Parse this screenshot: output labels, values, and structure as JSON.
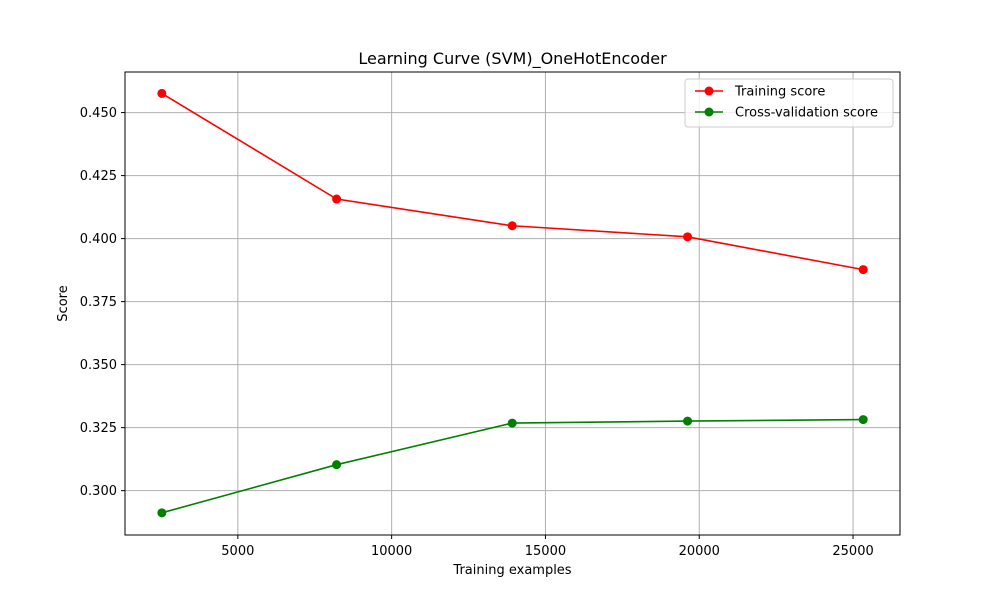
{
  "chart_data": {
    "type": "line",
    "title": "Learning Curve (SVM)_OneHotEncoder",
    "xlabel": "Training examples",
    "ylabel": "Score",
    "xlim": [
      1332,
      26526
    ],
    "ylim": [
      0.2824,
      0.4661
    ],
    "xticks": [
      5000,
      10000,
      15000,
      20000,
      25000
    ],
    "xtick_labels": [
      "5000",
      "10000",
      "15000",
      "20000",
      "25000"
    ],
    "yticks": [
      0.3,
      0.325,
      0.35,
      0.375,
      0.4,
      0.425,
      0.45
    ],
    "ytick_labels": [
      "0.300",
      "0.325",
      "0.350",
      "0.375",
      "0.400",
      "0.425",
      "0.450"
    ],
    "grid": true,
    "legend_position": "top-right",
    "x": [
      2530,
      8210,
      13920,
      19620,
      25330
    ],
    "series": [
      {
        "name": "Training score",
        "color": "#ff0000",
        "marker": "circle",
        "values": [
          0.4576,
          0.4157,
          0.4051,
          0.4007,
          0.3877
        ]
      },
      {
        "name": "Cross-validation score",
        "color": "#008000",
        "marker": "circle",
        "values": [
          0.2912,
          0.3103,
          0.3268,
          0.3276,
          0.3282
        ]
      }
    ]
  }
}
